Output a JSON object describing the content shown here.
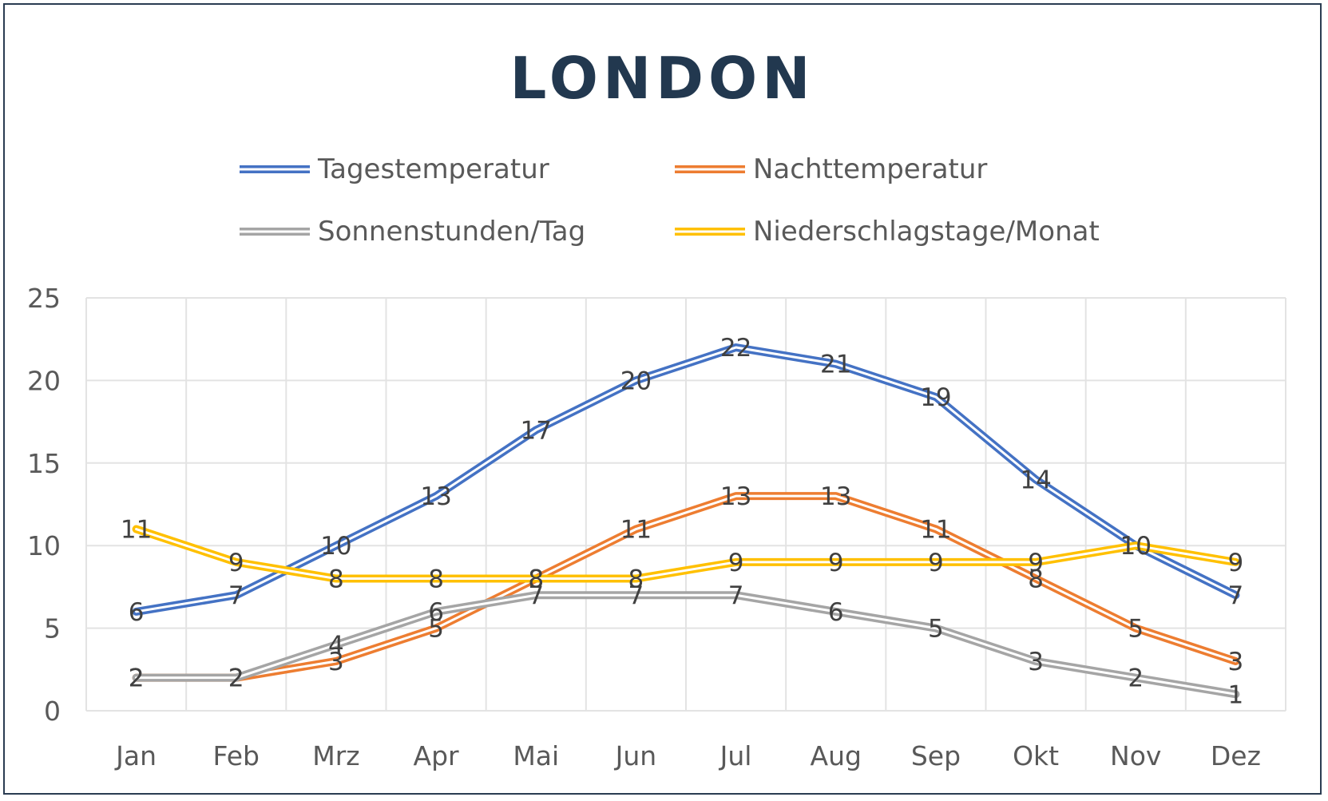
{
  "chart_data": {
    "type": "line",
    "title": "LONDON",
    "xlabel": "",
    "ylabel": "",
    "ylim": [
      0,
      25
    ],
    "yticks": [
      0,
      5,
      10,
      15,
      20,
      25
    ],
    "grid": true,
    "legend_position": "top",
    "categories": [
      "Jan",
      "Feb",
      "Mrz",
      "Apr",
      "Mai",
      "Jun",
      "Jul",
      "Aug",
      "Sep",
      "Okt",
      "Nov",
      "Dez"
    ],
    "series": [
      {
        "name": "Tagestemperatur",
        "color": "#4472c4",
        "values": [
          6,
          7,
          10,
          13,
          17,
          20,
          22,
          21,
          19,
          14,
          10,
          7
        ]
      },
      {
        "name": "Nachttemperatur",
        "color": "#ed7d31",
        "values": [
          2,
          2,
          3,
          5,
          8,
          11,
          13,
          13,
          11,
          8,
          5,
          3
        ]
      },
      {
        "name": "Sonnenstunden/Tag",
        "color": "#a5a5a5",
        "values": [
          2,
          2,
          4,
          6,
          7,
          7,
          7,
          6,
          5,
          3,
          2,
          1
        ]
      },
      {
        "name": "Niederschlagstage/Monat",
        "color": "#ffc000",
        "values": [
          11,
          9,
          8,
          8,
          8,
          8,
          9,
          9,
          9,
          9,
          10,
          9
        ]
      }
    ]
  }
}
